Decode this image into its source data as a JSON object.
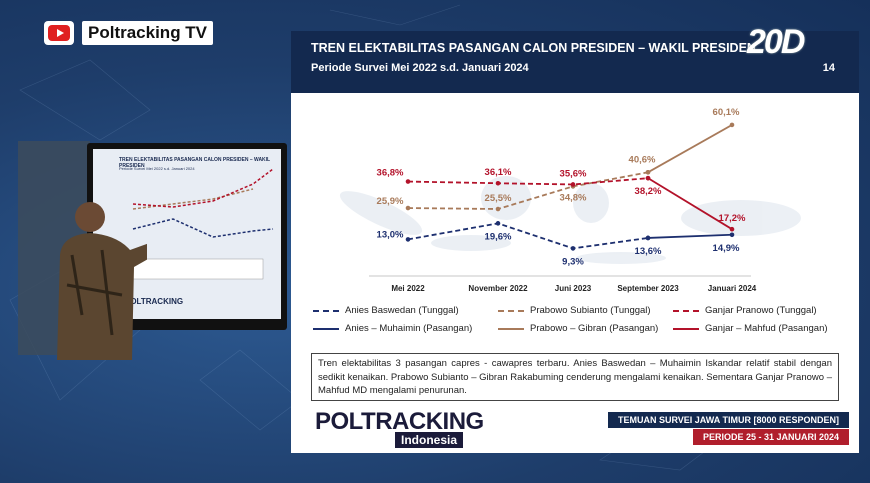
{
  "channel": {
    "name": "Poltracking TV"
  },
  "slide": {
    "title": "TREN ELEKTABILITAS PASANGAN CALON PRESIDEN – WAKIL PRESIDEN",
    "subtitle": "Periode Survei Mei 2022 s.d. Januari 2024",
    "page_number": "14",
    "stamp": "20D",
    "description": "Tren elektabilitas 3 pasangan capres - cawapres terbaru. Anies Baswedan – Muhaimin Iskandar relatif stabil dengan sedikit kenaikan. Prabowo Subianto – Gibran Rakabuming cenderung mengalami kenaikan. Sementara Ganjar Pranowo – Mahfud MD mengalami penurunan.",
    "brand_main": "POLTRACKING",
    "brand_sub": "Indonesia",
    "footer_top": "TEMUAN SURVEI JAWA TIMUR [8000 RESPONDEN]",
    "footer_bottom": "PERIODE 25 - 31 JANUARI 2024"
  },
  "monitor": {
    "title": "TREN ELEKTABILITAS PASANGAN CALON PRESIDEN – WAKIL PRESIDEN",
    "subtitle": "Periode Survei Mei 2022 s.d. Januari 2024",
    "logo": "POLTRACKING"
  },
  "colors": {
    "anies": "#1d2f6f",
    "prabowo": "#a87a5a",
    "ganjar": "#b3122a"
  },
  "chart_data": {
    "type": "line",
    "categories": [
      "Mei 2022",
      "November 2022",
      "Juni 2023",
      "September 2023",
      "Januari 2024"
    ],
    "series": [
      {
        "name": "Anies Baswedan (Tunggal)",
        "key": "anies",
        "dashed": true,
        "points": [
          {
            "x": "Mei 2022",
            "y": 13.0
          },
          {
            "x": "November 2022",
            "y": 19.6
          },
          {
            "x": "Juni 2023",
            "y": 9.3
          },
          {
            "x": "September 2023",
            "y": 13.6
          }
        ],
        "labels": [
          "13,0%",
          "19,6%",
          "9,3%",
          "13,6%"
        ]
      },
      {
        "name": "Prabowo Subianto (Tunggal)",
        "key": "prabowo",
        "dashed": true,
        "points": [
          {
            "x": "Mei 2022",
            "y": 25.9
          },
          {
            "x": "November 2022",
            "y": 25.5
          },
          {
            "x": "Juni 2023",
            "y": 34.8
          },
          {
            "x": "September 2023",
            "y": 40.6
          }
        ],
        "labels": [
          "25,9%",
          "25,5%",
          "34,8%",
          "40,6%"
        ]
      },
      {
        "name": "Ganjar Pranowo (Tunggal)",
        "key": "ganjar",
        "dashed": true,
        "points": [
          {
            "x": "Mei 2022",
            "y": 36.8
          },
          {
            "x": "November 2022",
            "y": 36.1
          },
          {
            "x": "Juni 2023",
            "y": 35.6
          },
          {
            "x": "September 2023",
            "y": 38.2
          }
        ],
        "labels": [
          "36,8%",
          "36,1%",
          "35,6%",
          "38,2%"
        ]
      },
      {
        "name": "Anies – Muhaimin (Pasangan)",
        "key": "anies",
        "dashed": false,
        "points": [
          {
            "x": "September 2023",
            "y": 13.6
          },
          {
            "x": "Januari 2024",
            "y": 14.9
          }
        ],
        "labels": [
          "",
          "14,9%"
        ]
      },
      {
        "name": "Prabowo – Gibran (Pasangan)",
        "key": "prabowo",
        "dashed": false,
        "points": [
          {
            "x": "September 2023",
            "y": 40.6
          },
          {
            "x": "Januari 2024",
            "y": 60.1
          }
        ],
        "labels": [
          "",
          "60,1%"
        ]
      },
      {
        "name": "Ganjar – Mahfud (Pasangan)",
        "key": "ganjar",
        "dashed": false,
        "points": [
          {
            "x": "September 2023",
            "y": 38.2
          },
          {
            "x": "Januari 2024",
            "y": 17.2
          }
        ],
        "labels": [
          "",
          "17,2%"
        ]
      }
    ],
    "ylim": [
      0,
      65
    ],
    "grid": false,
    "legend": "bottom"
  }
}
